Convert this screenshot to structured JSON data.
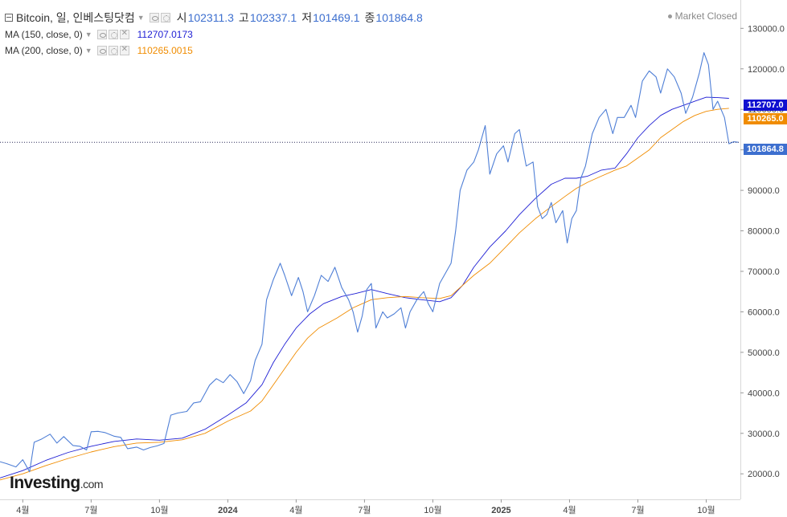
{
  "header": {
    "symbol": "Bitcoin, 일, 인베스팅닷컴",
    "ohlc": [
      {
        "label": "시",
        "value": "102311.3"
      },
      {
        "label": "고",
        "value": "102337.1"
      },
      {
        "label": "저",
        "value": "101469.1"
      },
      {
        "label": "종",
        "value": "101864.8"
      }
    ],
    "market_status": "Market Closed"
  },
  "indicators": [
    {
      "name": "MA (150, close, 0)",
      "value": "112707.0173",
      "color": "#1e1ed4"
    },
    {
      "name": "MA (200, close, 0)",
      "value": "110265.0015",
      "color": "#f08c00"
    }
  ],
  "badges": {
    "ma150": "112707.0",
    "ma200": "110265.0",
    "price": "101864.8"
  },
  "logo": {
    "main": "Investing",
    "suffix": ".com"
  },
  "colors": {
    "price": "#4f7fd6",
    "ma150": "#1e1ed4",
    "ma200": "#f08c00",
    "price_badge": "#3d6fcf",
    "ma150_badge": "#1010d0",
    "ma200_badge": "#f08c00"
  },
  "chart_data": {
    "type": "line",
    "title": "Bitcoin, 일, 인베스팅닷컴",
    "x_unit": "months since 2023-01-01",
    "xlim": [
      2.0,
      34.5
    ],
    "ylim": [
      13700,
      137000
    ],
    "y_ticks": [
      "130000.0",
      "120000.0",
      "110000.0",
      "100000.0",
      "90000.0",
      "80000.0",
      "70000.0",
      "60000.0",
      "50000.0",
      "40000.0",
      "30000.0",
      "20000.0"
    ],
    "y_tick_values": [
      130000,
      120000,
      110000,
      100000,
      90000,
      80000,
      70000,
      60000,
      50000,
      40000,
      30000,
      20000
    ],
    "x_ticks": [
      "4월",
      "7월",
      "10월",
      "2024",
      "4월",
      "7월",
      "10월",
      "2025",
      "4월",
      "7월",
      "10월"
    ],
    "x_tick_values": [
      3,
      6,
      9,
      12,
      15,
      18,
      21,
      24,
      27,
      30,
      33
    ],
    "last_price": 101864.8,
    "series": [
      {
        "name": "Bitcoin",
        "color": "#4f7fd6",
        "points": [
          [
            2.0,
            23000
          ],
          [
            2.3,
            22500
          ],
          [
            2.7,
            21700
          ],
          [
            3.0,
            23500
          ],
          [
            3.3,
            20500
          ],
          [
            3.5,
            27800
          ],
          [
            3.8,
            28500
          ],
          [
            4.2,
            29800
          ],
          [
            4.5,
            27600
          ],
          [
            4.8,
            29200
          ],
          [
            5.2,
            27000
          ],
          [
            5.5,
            26800
          ],
          [
            5.8,
            25900
          ],
          [
            6.0,
            30400
          ],
          [
            6.3,
            30500
          ],
          [
            6.6,
            30200
          ],
          [
            7.0,
            29300
          ],
          [
            7.3,
            29000
          ],
          [
            7.6,
            26200
          ],
          [
            8.0,
            26600
          ],
          [
            8.3,
            25900
          ],
          [
            8.6,
            26500
          ],
          [
            8.9,
            26900
          ],
          [
            9.2,
            27500
          ],
          [
            9.5,
            34500
          ],
          [
            9.8,
            35000
          ],
          [
            10.2,
            35400
          ],
          [
            10.5,
            37500
          ],
          [
            10.8,
            37800
          ],
          [
            11.2,
            41900
          ],
          [
            11.5,
            43500
          ],
          [
            11.8,
            42500
          ],
          [
            12.1,
            44500
          ],
          [
            12.4,
            42800
          ],
          [
            12.7,
            39800
          ],
          [
            13.0,
            43000
          ],
          [
            13.2,
            48000
          ],
          [
            13.5,
            52000
          ],
          [
            13.7,
            63000
          ],
          [
            14.0,
            68000
          ],
          [
            14.3,
            72000
          ],
          [
            14.5,
            69000
          ],
          [
            14.8,
            64000
          ],
          [
            15.1,
            68500
          ],
          [
            15.3,
            65000
          ],
          [
            15.5,
            60000
          ],
          [
            15.8,
            64000
          ],
          [
            16.1,
            69000
          ],
          [
            16.4,
            67500
          ],
          [
            16.7,
            71000
          ],
          [
            17.0,
            66000
          ],
          [
            17.3,
            63000
          ],
          [
            17.5,
            60000
          ],
          [
            17.7,
            55000
          ],
          [
            17.9,
            59000
          ],
          [
            18.1,
            65500
          ],
          [
            18.3,
            67000
          ],
          [
            18.5,
            56000
          ],
          [
            18.8,
            60000
          ],
          [
            19.0,
            58500
          ],
          [
            19.3,
            59500
          ],
          [
            19.6,
            61000
          ],
          [
            19.8,
            56000
          ],
          [
            20.0,
            60000
          ],
          [
            20.3,
            63000
          ],
          [
            20.6,
            65000
          ],
          [
            20.8,
            62000
          ],
          [
            21.0,
            60000
          ],
          [
            21.3,
            67000
          ],
          [
            21.5,
            69000
          ],
          [
            21.8,
            72000
          ],
          [
            22.0,
            80000
          ],
          [
            22.2,
            90000
          ],
          [
            22.5,
            95000
          ],
          [
            22.8,
            97000
          ],
          [
            23.0,
            100000
          ],
          [
            23.3,
            106000
          ],
          [
            23.5,
            94000
          ],
          [
            23.8,
            99000
          ],
          [
            24.1,
            101000
          ],
          [
            24.3,
            97000
          ],
          [
            24.6,
            104000
          ],
          [
            24.8,
            105000
          ],
          [
            25.1,
            96000
          ],
          [
            25.4,
            97000
          ],
          [
            25.6,
            86000
          ],
          [
            25.8,
            83000
          ],
          [
            26.0,
            84000
          ],
          [
            26.2,
            87000
          ],
          [
            26.4,
            82000
          ],
          [
            26.7,
            85000
          ],
          [
            26.9,
            77000
          ],
          [
            27.1,
            83000
          ],
          [
            27.3,
            85000
          ],
          [
            27.5,
            93000
          ],
          [
            27.7,
            96000
          ],
          [
            28.0,
            104000
          ],
          [
            28.3,
            108000
          ],
          [
            28.6,
            110000
          ],
          [
            28.9,
            104000
          ],
          [
            29.1,
            108000
          ],
          [
            29.4,
            108000
          ],
          [
            29.7,
            111000
          ],
          [
            29.9,
            108000
          ],
          [
            30.2,
            117000
          ],
          [
            30.5,
            119500
          ],
          [
            30.8,
            118000
          ],
          [
            31.0,
            114000
          ],
          [
            31.3,
            120000
          ],
          [
            31.6,
            118000
          ],
          [
            31.9,
            114000
          ],
          [
            32.1,
            109000
          ],
          [
            32.4,
            113000
          ],
          [
            32.7,
            119000
          ],
          [
            32.9,
            124000
          ],
          [
            33.1,
            121000
          ],
          [
            33.3,
            110000
          ],
          [
            33.5,
            112000
          ],
          [
            33.8,
            108000
          ],
          [
            34.0,
            101500
          ],
          [
            34.2,
            102000
          ],
          [
            34.4,
            101864.8
          ]
        ]
      },
      {
        "name": "MA (150, close, 0)",
        "color": "#1e1ed4",
        "points": [
          [
            2.0,
            19000
          ],
          [
            3.0,
            20800
          ],
          [
            4.0,
            23300
          ],
          [
            5.0,
            25300
          ],
          [
            6.0,
            26800
          ],
          [
            7.0,
            28000
          ],
          [
            8.0,
            28600
          ],
          [
            9.0,
            28300
          ],
          [
            10.0,
            28800
          ],
          [
            11.0,
            31000
          ],
          [
            12.0,
            34500
          ],
          [
            12.8,
            37500
          ],
          [
            13.5,
            42000
          ],
          [
            14.0,
            47500
          ],
          [
            14.5,
            52000
          ],
          [
            15.0,
            56000
          ],
          [
            15.6,
            59500
          ],
          [
            16.2,
            62000
          ],
          [
            17.0,
            63800
          ],
          [
            17.6,
            64500
          ],
          [
            18.3,
            65500
          ],
          [
            19.0,
            64500
          ],
          [
            19.8,
            63500
          ],
          [
            20.5,
            63000
          ],
          [
            21.3,
            62500
          ],
          [
            21.8,
            63500
          ],
          [
            22.3,
            66500
          ],
          [
            22.8,
            71000
          ],
          [
            23.5,
            76000
          ],
          [
            24.2,
            80000
          ],
          [
            24.8,
            84000
          ],
          [
            25.5,
            88000
          ],
          [
            26.2,
            91500
          ],
          [
            26.8,
            93000
          ],
          [
            27.3,
            93000
          ],
          [
            27.8,
            93500
          ],
          [
            28.4,
            95000
          ],
          [
            29.0,
            95500
          ],
          [
            29.5,
            99000
          ],
          [
            30.0,
            103000
          ],
          [
            30.5,
            106000
          ],
          [
            31.0,
            108500
          ],
          [
            31.5,
            110000
          ],
          [
            32.0,
            111000
          ],
          [
            32.5,
            112000
          ],
          [
            33.0,
            113000
          ],
          [
            33.5,
            112900
          ],
          [
            34.0,
            112707
          ]
        ]
      },
      {
        "name": "MA (200, close, 0)",
        "color": "#f08c00",
        "points": [
          [
            2.0,
            18500
          ],
          [
            3.0,
            20000
          ],
          [
            4.0,
            22000
          ],
          [
            5.0,
            23800
          ],
          [
            6.0,
            25400
          ],
          [
            7.0,
            26700
          ],
          [
            8.0,
            27600
          ],
          [
            9.0,
            27800
          ],
          [
            10.0,
            28400
          ],
          [
            11.0,
            30000
          ],
          [
            12.0,
            33000
          ],
          [
            13.0,
            35500
          ],
          [
            13.5,
            38000
          ],
          [
            14.0,
            42000
          ],
          [
            14.5,
            46000
          ],
          [
            15.0,
            50000
          ],
          [
            15.5,
            53500
          ],
          [
            16.0,
            56000
          ],
          [
            16.8,
            58500
          ],
          [
            17.5,
            61000
          ],
          [
            18.3,
            63000
          ],
          [
            19.0,
            63500
          ],
          [
            19.8,
            63800
          ],
          [
            20.5,
            63500
          ],
          [
            21.3,
            63300
          ],
          [
            21.8,
            64000
          ],
          [
            22.3,
            66500
          ],
          [
            22.8,
            69000
          ],
          [
            23.5,
            72000
          ],
          [
            24.2,
            76000
          ],
          [
            24.8,
            79500
          ],
          [
            25.5,
            83000
          ],
          [
            26.2,
            86000
          ],
          [
            26.8,
            88500
          ],
          [
            27.3,
            90500
          ],
          [
            27.8,
            92000
          ],
          [
            28.4,
            93500
          ],
          [
            29.0,
            95000
          ],
          [
            29.5,
            96000
          ],
          [
            30.0,
            98000
          ],
          [
            30.5,
            100000
          ],
          [
            31.0,
            103000
          ],
          [
            31.5,
            105000
          ],
          [
            32.0,
            107000
          ],
          [
            32.5,
            108500
          ],
          [
            33.0,
            109500
          ],
          [
            33.5,
            110000
          ],
          [
            34.0,
            110265
          ]
        ]
      }
    ]
  }
}
